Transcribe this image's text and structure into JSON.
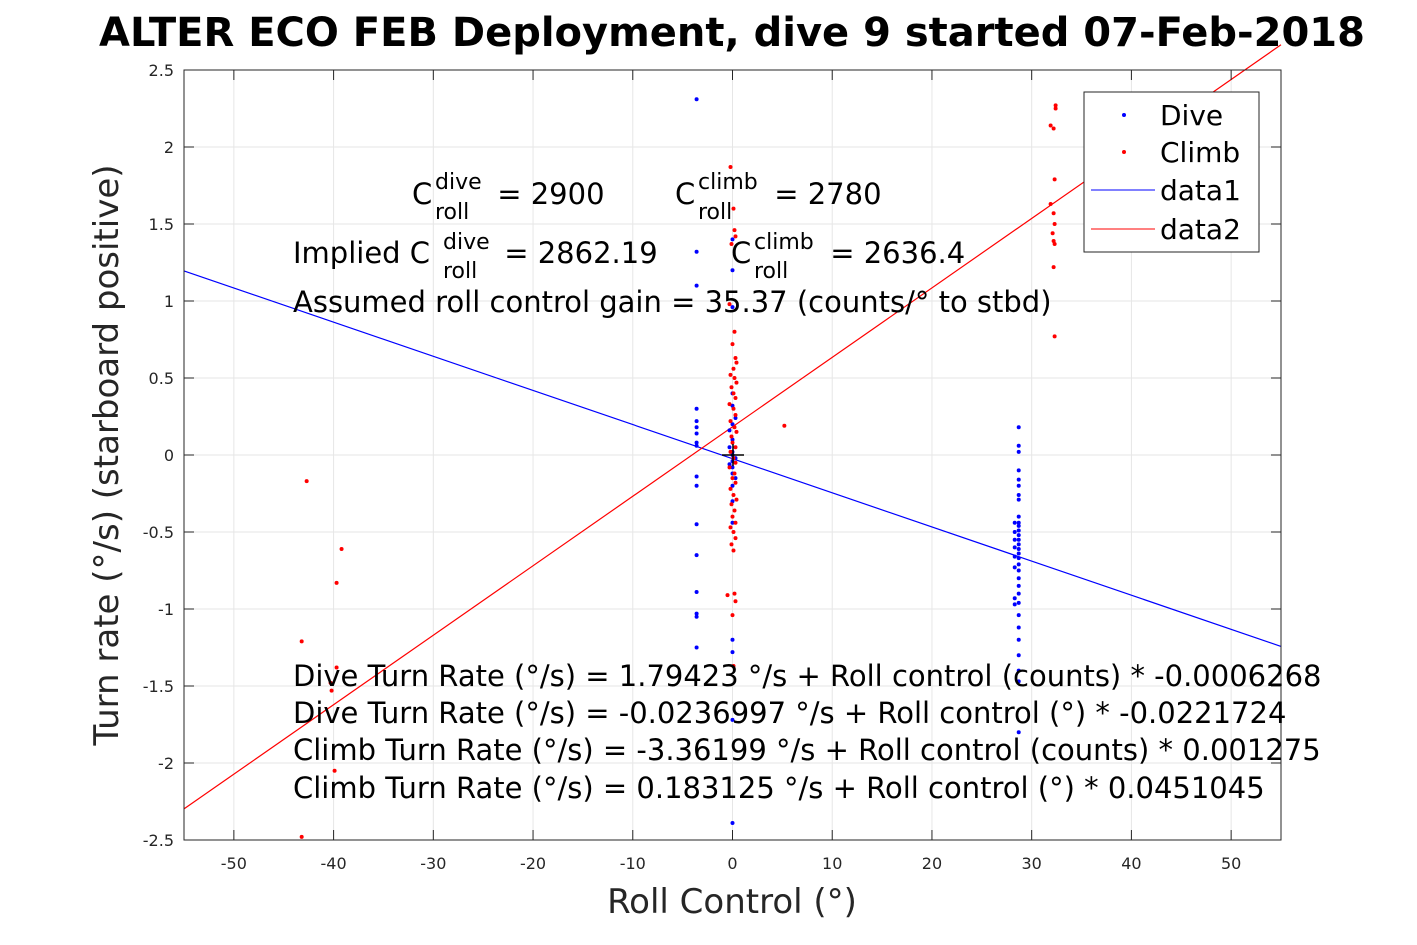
{
  "chart_data": {
    "type": "scatter",
    "title": "ALTER ECO FEB Deployment, dive 9 started 07-Feb-2018",
    "xlabel": "Roll Control (°)",
    "ylabel": "Turn rate (°/s) (starboard positive)",
    "xlim": [
      -55,
      55
    ],
    "ylim": [
      -2.5,
      2.5
    ],
    "xticks": [
      -50,
      -40,
      -30,
      -20,
      -10,
      0,
      10,
      20,
      30,
      40,
      50
    ],
    "yticks": [
      -2.5,
      -2,
      -1.5,
      -1,
      -0.5,
      0,
      0.5,
      1,
      1.5,
      2,
      2.5
    ],
    "grid": true,
    "legend": {
      "placement": "top-right",
      "entries": [
        "Dive",
        "Climb",
        "data1",
        "data2"
      ]
    },
    "colors": {
      "dive": "#0000ff",
      "climb": "#ff0000",
      "grid": "#e6e6e6",
      "axis": "#262626"
    },
    "series": [
      {
        "name": "Dive",
        "marker": "dot",
        "points": [
          [
            -3.6,
            2.31
          ],
          [
            -3.6,
            1.32
          ],
          [
            -3.6,
            1.1
          ],
          [
            -3.6,
            0.3
          ],
          [
            -3.6,
            0.22
          ],
          [
            -3.6,
            0.18
          ],
          [
            -3.6,
            0.14
          ],
          [
            -3.6,
            0.08
          ],
          [
            -3.6,
            0.06
          ],
          [
            -3.6,
            -0.14
          ],
          [
            -3.6,
            -0.2
          ],
          [
            -3.6,
            -0.45
          ],
          [
            -3.6,
            -0.65
          ],
          [
            -3.6,
            -0.89
          ],
          [
            -3.6,
            -1.03
          ],
          [
            -3.6,
            -1.05
          ],
          [
            -3.6,
            -1.25
          ],
          [
            0,
            1.4
          ],
          [
            0,
            1.2
          ],
          [
            0,
            0.96
          ],
          [
            0,
            0.4
          ],
          [
            0,
            0.32
          ],
          [
            0,
            0.2
          ],
          [
            0,
            0.1
          ],
          [
            0,
            0.02
          ],
          [
            0,
            0.0
          ],
          [
            0,
            -0.04
          ],
          [
            0,
            -0.08
          ],
          [
            0,
            -0.12
          ],
          [
            0,
            -0.2
          ],
          [
            0,
            -0.3
          ],
          [
            0,
            -0.44
          ],
          [
            0,
            -1.2
          ],
          [
            0,
            -1.28
          ],
          [
            0,
            -1.72
          ],
          [
            0,
            -2.39
          ],
          [
            -0.3,
            0.16
          ],
          [
            -0.3,
            0.05
          ],
          [
            -0.3,
            -0.06
          ],
          [
            0.3,
            0.24
          ],
          [
            0.3,
            -0.02
          ],
          [
            0.3,
            -0.15
          ],
          [
            28.7,
            0.18
          ],
          [
            28.7,
            0.06
          ],
          [
            28.7,
            0.02
          ],
          [
            28.7,
            -0.1
          ],
          [
            28.7,
            -0.16
          ],
          [
            28.7,
            -0.2
          ],
          [
            28.7,
            -0.26
          ],
          [
            28.7,
            -0.29
          ],
          [
            28.7,
            -0.4
          ],
          [
            28.7,
            -0.44
          ],
          [
            28.7,
            -0.46
          ],
          [
            28.7,
            -0.49
          ],
          [
            28.7,
            -0.52
          ],
          [
            28.7,
            -0.55
          ],
          [
            28.7,
            -0.58
          ],
          [
            28.7,
            -0.61
          ],
          [
            28.7,
            -0.64
          ],
          [
            28.7,
            -0.67
          ],
          [
            28.7,
            -0.71
          ],
          [
            28.7,
            -0.75
          ],
          [
            28.7,
            -0.8
          ],
          [
            28.7,
            -0.85
          ],
          [
            28.7,
            -0.9
          ],
          [
            28.7,
            -0.96
          ],
          [
            28.7,
            -1.04
          ],
          [
            28.7,
            -1.12
          ],
          [
            28.7,
            -1.2
          ],
          [
            28.7,
            -1.3
          ],
          [
            28.7,
            -1.4
          ],
          [
            28.7,
            -1.47
          ],
          [
            28.7,
            -1.8
          ],
          [
            28.3,
            -0.44
          ],
          [
            28.3,
            -0.5
          ],
          [
            28.3,
            -0.55
          ],
          [
            28.3,
            -0.6
          ],
          [
            28.3,
            -0.66
          ],
          [
            28.3,
            -0.97
          ],
          [
            28.3,
            -0.93
          ],
          [
            28.3,
            -0.73
          ]
        ]
      },
      {
        "name": "Climb",
        "marker": "dot",
        "points": [
          [
            -43.2,
            -1.21
          ],
          [
            -43.2,
            -2.48
          ],
          [
            -42.7,
            -0.17
          ],
          [
            -39.7,
            -0.83
          ],
          [
            -39.2,
            -0.61
          ],
          [
            -39.7,
            -1.38
          ],
          [
            -40.3,
            -1.48
          ],
          [
            -40.2,
            -1.53
          ],
          [
            -39.9,
            -2.05
          ],
          [
            -0.2,
            1.87
          ],
          [
            0.1,
            1.6
          ],
          [
            0.2,
            1.46
          ],
          [
            -0.1,
            1.37
          ],
          [
            0.3,
            1.42
          ],
          [
            -0.3,
            0.98
          ],
          [
            0.2,
            0.8
          ],
          [
            0,
            0.72
          ],
          [
            0.3,
            0.63
          ],
          [
            0.4,
            0.6
          ],
          [
            0.1,
            0.56
          ],
          [
            -0.2,
            0.52
          ],
          [
            0.2,
            0.5
          ],
          [
            0.4,
            0.47
          ],
          [
            -0.1,
            0.44
          ],
          [
            0.1,
            0.4
          ],
          [
            0.3,
            0.37
          ],
          [
            -0.3,
            0.33
          ],
          [
            0.1,
            0.3
          ],
          [
            0.3,
            0.26
          ],
          [
            -0.2,
            0.22
          ],
          [
            0.2,
            0.18
          ],
          [
            0.4,
            0.15
          ],
          [
            -0.1,
            0.12
          ],
          [
            0,
            0.08
          ],
          [
            0.3,
            0.05
          ],
          [
            -0.2,
            0.02
          ],
          [
            0.1,
            -0.02
          ],
          [
            0.3,
            -0.05
          ],
          [
            -0.3,
            -0.08
          ],
          [
            0.2,
            -0.12
          ],
          [
            0,
            -0.15
          ],
          [
            0.3,
            -0.18
          ],
          [
            -0.2,
            -0.22
          ],
          [
            0.1,
            -0.26
          ],
          [
            0.4,
            -0.29
          ],
          [
            -0.1,
            -0.32
          ],
          [
            0.2,
            -0.36
          ],
          [
            0,
            -0.4
          ],
          [
            0.3,
            -0.44
          ],
          [
            -0.2,
            -0.47
          ],
          [
            0.1,
            -0.5
          ],
          [
            0.3,
            -0.54
          ],
          [
            -0.1,
            -0.58
          ],
          [
            0.1,
            -0.62
          ],
          [
            -0.5,
            -0.91
          ],
          [
            0.2,
            -0.9
          ],
          [
            0.3,
            -0.95
          ],
          [
            0,
            -1.04
          ],
          [
            0.1,
            -1.37
          ],
          [
            5.2,
            0.19
          ],
          [
            31.9,
            2.14
          ],
          [
            32.2,
            2.12
          ],
          [
            32.4,
            2.27
          ],
          [
            32.4,
            2.25
          ],
          [
            32.3,
            1.79
          ],
          [
            31.9,
            1.63
          ],
          [
            32.2,
            1.57
          ],
          [
            32.3,
            1.5
          ],
          [
            32.1,
            1.44
          ],
          [
            32.2,
            1.39
          ],
          [
            32.3,
            1.37
          ],
          [
            32.2,
            1.22
          ],
          [
            32.3,
            0.77
          ]
        ]
      },
      {
        "name": "data1",
        "line": [
          [
            -55,
            1.195
          ],
          [
            55,
            -1.243
          ]
        ]
      },
      {
        "name": "data2",
        "line": [
          [
            -55,
            -2.298
          ],
          [
            55,
            2.664
          ]
        ]
      }
    ],
    "annotations": {
      "c_dive_base": "C",
      "c_dive_sup": "dive",
      "c_dive_sub": "roll",
      "c_dive_val": " = 2900",
      "c_climb_base": "C",
      "c_climb_sup": "climb",
      "c_climb_sub": "roll",
      "c_climb_val": " = 2780",
      "implied_prefix": "Implied C",
      "implied_dive_sup": "dive",
      "implied_dive_sub": "roll",
      "implied_dive_val": " = 2862.19",
      "implied_climb_base": "C",
      "implied_climb_sup": "climb",
      "implied_climb_sub": "roll",
      "implied_climb_val": " = 2636.4",
      "gain": "Assumed roll control gain = 35.37 (counts/° to stbd)",
      "eq1": "Dive Turn Rate (°/s) = 1.79423 °/s + Roll control (counts) * -0.0006268",
      "eq2": "Dive Turn Rate (°/s) = -0.0236997 °/s + Roll control (°) * -0.0221724",
      "eq3": "Climb Turn Rate (°/s) = -3.36199 °/s + Roll control (counts) * 0.001275",
      "eq4": "Climb Turn Rate (°/s) = 0.183125 °/s + Roll control (°) * 0.0451045"
    }
  }
}
